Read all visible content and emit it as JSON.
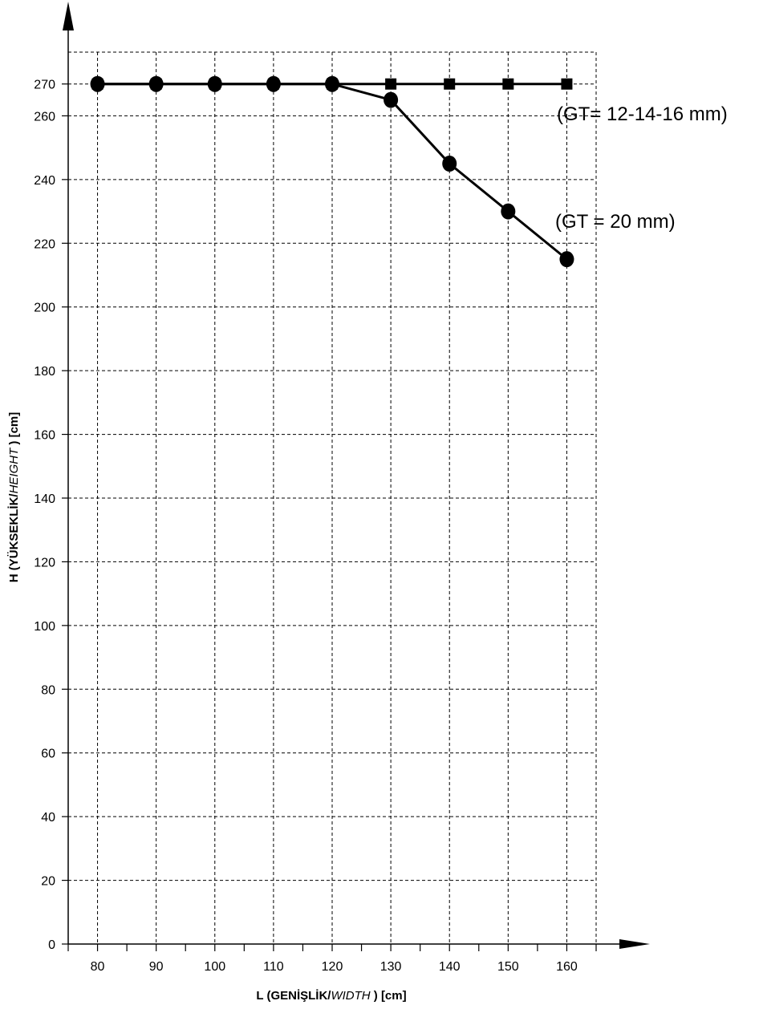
{
  "chart_data": {
    "type": "line",
    "title": "",
    "xlabel": {
      "prefix": "L (GENİŞLİK/",
      "italic": "WIDTH",
      "suffix": " ) [cm]"
    },
    "ylabel": {
      "prefix": "H (YÜKSEKLİK/",
      "italic": "HEIGHT",
      "suffix": " ) [cm]"
    },
    "xlim": [
      75,
      165
    ],
    "ylim": [
      0,
      280
    ],
    "x_ticks": [
      80,
      90,
      100,
      110,
      120,
      130,
      140,
      150,
      160
    ],
    "y_ticks": [
      0,
      20,
      40,
      60,
      80,
      100,
      120,
      140,
      160,
      180,
      200,
      220,
      240,
      260,
      270
    ],
    "grid": true,
    "x": [
      80,
      90,
      100,
      110,
      120,
      130,
      140,
      150,
      160
    ],
    "series": [
      {
        "name": "(GT= 12-14-16 mm)",
        "marker": "square",
        "values": [
          270,
          270,
          270,
          270,
          270,
          270,
          270,
          270,
          270
        ]
      },
      {
        "name": "(GT = 20 mm)",
        "marker": "circle",
        "values": [
          270,
          270,
          270,
          270,
          270,
          265,
          245,
          230,
          215
        ]
      }
    ]
  },
  "colors": {
    "line": "#000000",
    "grid": "#000000",
    "background": "#ffffff"
  }
}
